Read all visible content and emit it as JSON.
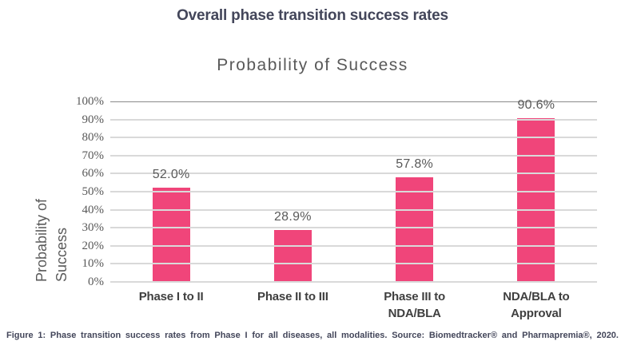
{
  "header": {
    "title": "Overall phase transition success rates"
  },
  "chart": {
    "title": "Probability of Success",
    "y_axis_title": "Probability of\nSuccess",
    "colors": {
      "bar": "#f0457a",
      "gridline": "#d9d9d9",
      "top_gridline": "#8a8a8a",
      "axis_text": "#595959",
      "x_label_text": "#3f3f3f",
      "heading_text": "#43465a",
      "background": "#ffffff"
    }
  },
  "chart_data": {
    "type": "bar",
    "title": "Probability of Success",
    "xlabel": "",
    "ylabel": "Probability of Success",
    "categories": [
      "Phase I to II",
      "Phase II to III",
      "Phase III to\nNDA/BLA",
      "NDA/BLA to\nApproval"
    ],
    "values": [
      52.0,
      28.9,
      57.8,
      90.6
    ],
    "value_labels": [
      "52.0%",
      "28.9%",
      "57.8%",
      "90.6%"
    ],
    "ylim": [
      0,
      100
    ],
    "y_ticks": [
      0,
      10,
      20,
      30,
      40,
      50,
      60,
      70,
      80,
      90,
      100
    ],
    "y_tick_labels": [
      "0%",
      "10%",
      "20%",
      "30%",
      "40%",
      "50%",
      "60%",
      "70%",
      "80%",
      "90%",
      "100%"
    ],
    "grid": true,
    "legend": false
  },
  "caption": {
    "text": "Figure 1: Phase transition success rates from Phase I for all diseases, all modalities. Source: Biomedtracker® and Pharmapremia®, 2020."
  }
}
